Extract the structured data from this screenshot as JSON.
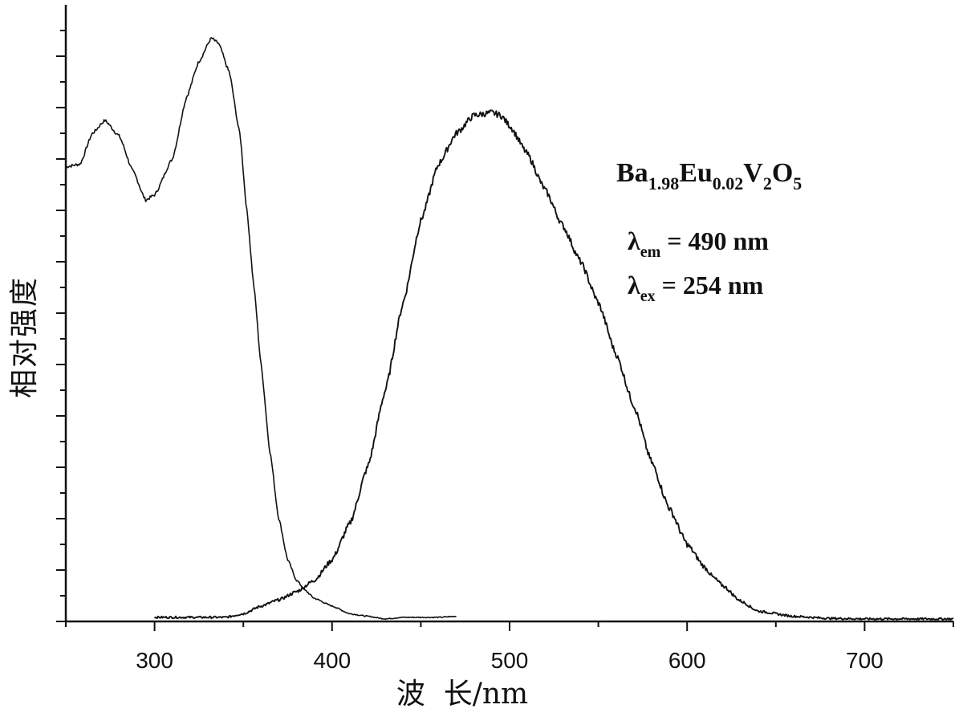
{
  "chart_data": {
    "type": "line",
    "xlabel": "波  长/nm",
    "ylabel": "相对强度",
    "xlim": [
      250,
      750
    ],
    "ylim": [
      0,
      1.2
    ],
    "x_ticks": [
      300,
      400,
      500,
      600,
      700
    ],
    "y_tick_labels_shown": false,
    "grid": false,
    "annotations": {
      "formula": {
        "parts": [
          {
            "text": "Ba",
            "sub": false
          },
          {
            "text": "1.98",
            "sub": true
          },
          {
            "text": "Eu",
            "sub": false
          },
          {
            "text": "0.02",
            "sub": true
          },
          {
            "text": "V",
            "sub": false
          },
          {
            "text": "2",
            "sub": true
          },
          {
            "text": "O",
            "sub": false
          },
          {
            "text": "5",
            "sub": true
          }
        ]
      },
      "lines": [
        {
          "symbol": "λ",
          "sub": "em",
          "rest": " = 490 nm"
        },
        {
          "symbol": "λ",
          "sub": "ex",
          "rest": " = 254 nm"
        }
      ]
    },
    "series": [
      {
        "color": "#111111",
        "x": [
          250,
          258,
          265,
          272,
          280,
          288,
          295,
          300,
          310,
          318,
          325,
          332,
          336,
          342,
          348,
          352,
          356,
          360,
          365,
          370,
          375,
          380,
          385,
          390,
          400,
          410,
          420,
          430,
          440,
          450,
          460,
          470
        ],
        "y": [
          0.885,
          0.89,
          0.95,
          0.975,
          0.945,
          0.875,
          0.82,
          0.83,
          0.9,
          1.02,
          1.09,
          1.135,
          1.125,
          1.07,
          0.95,
          0.8,
          0.65,
          0.5,
          0.33,
          0.2,
          0.12,
          0.08,
          0.06,
          0.045,
          0.03,
          0.015,
          0.01,
          0.005,
          0.008,
          0.008,
          0.008,
          0.01
        ]
      },
      {
        "color": "#111111",
        "x": [
          300,
          320,
          340,
          350,
          360,
          370,
          380,
          390,
          400,
          410,
          420,
          430,
          440,
          450,
          460,
          470,
          480,
          490,
          495,
          500,
          510,
          520,
          530,
          540,
          550,
          560,
          570,
          580,
          590,
          600,
          610,
          615,
          620,
          630,
          640,
          660,
          680,
          700,
          720,
          750
        ],
        "y": [
          0.008,
          0.008,
          0.008,
          0.015,
          0.03,
          0.042,
          0.058,
          0.08,
          0.12,
          0.19,
          0.3,
          0.45,
          0.62,
          0.78,
          0.89,
          0.95,
          0.985,
          0.99,
          0.985,
          0.965,
          0.91,
          0.84,
          0.77,
          0.7,
          0.62,
          0.52,
          0.42,
          0.31,
          0.22,
          0.15,
          0.105,
          0.085,
          0.07,
          0.04,
          0.02,
          0.01,
          0.006,
          0.005,
          0.005,
          0.005
        ]
      }
    ]
  }
}
